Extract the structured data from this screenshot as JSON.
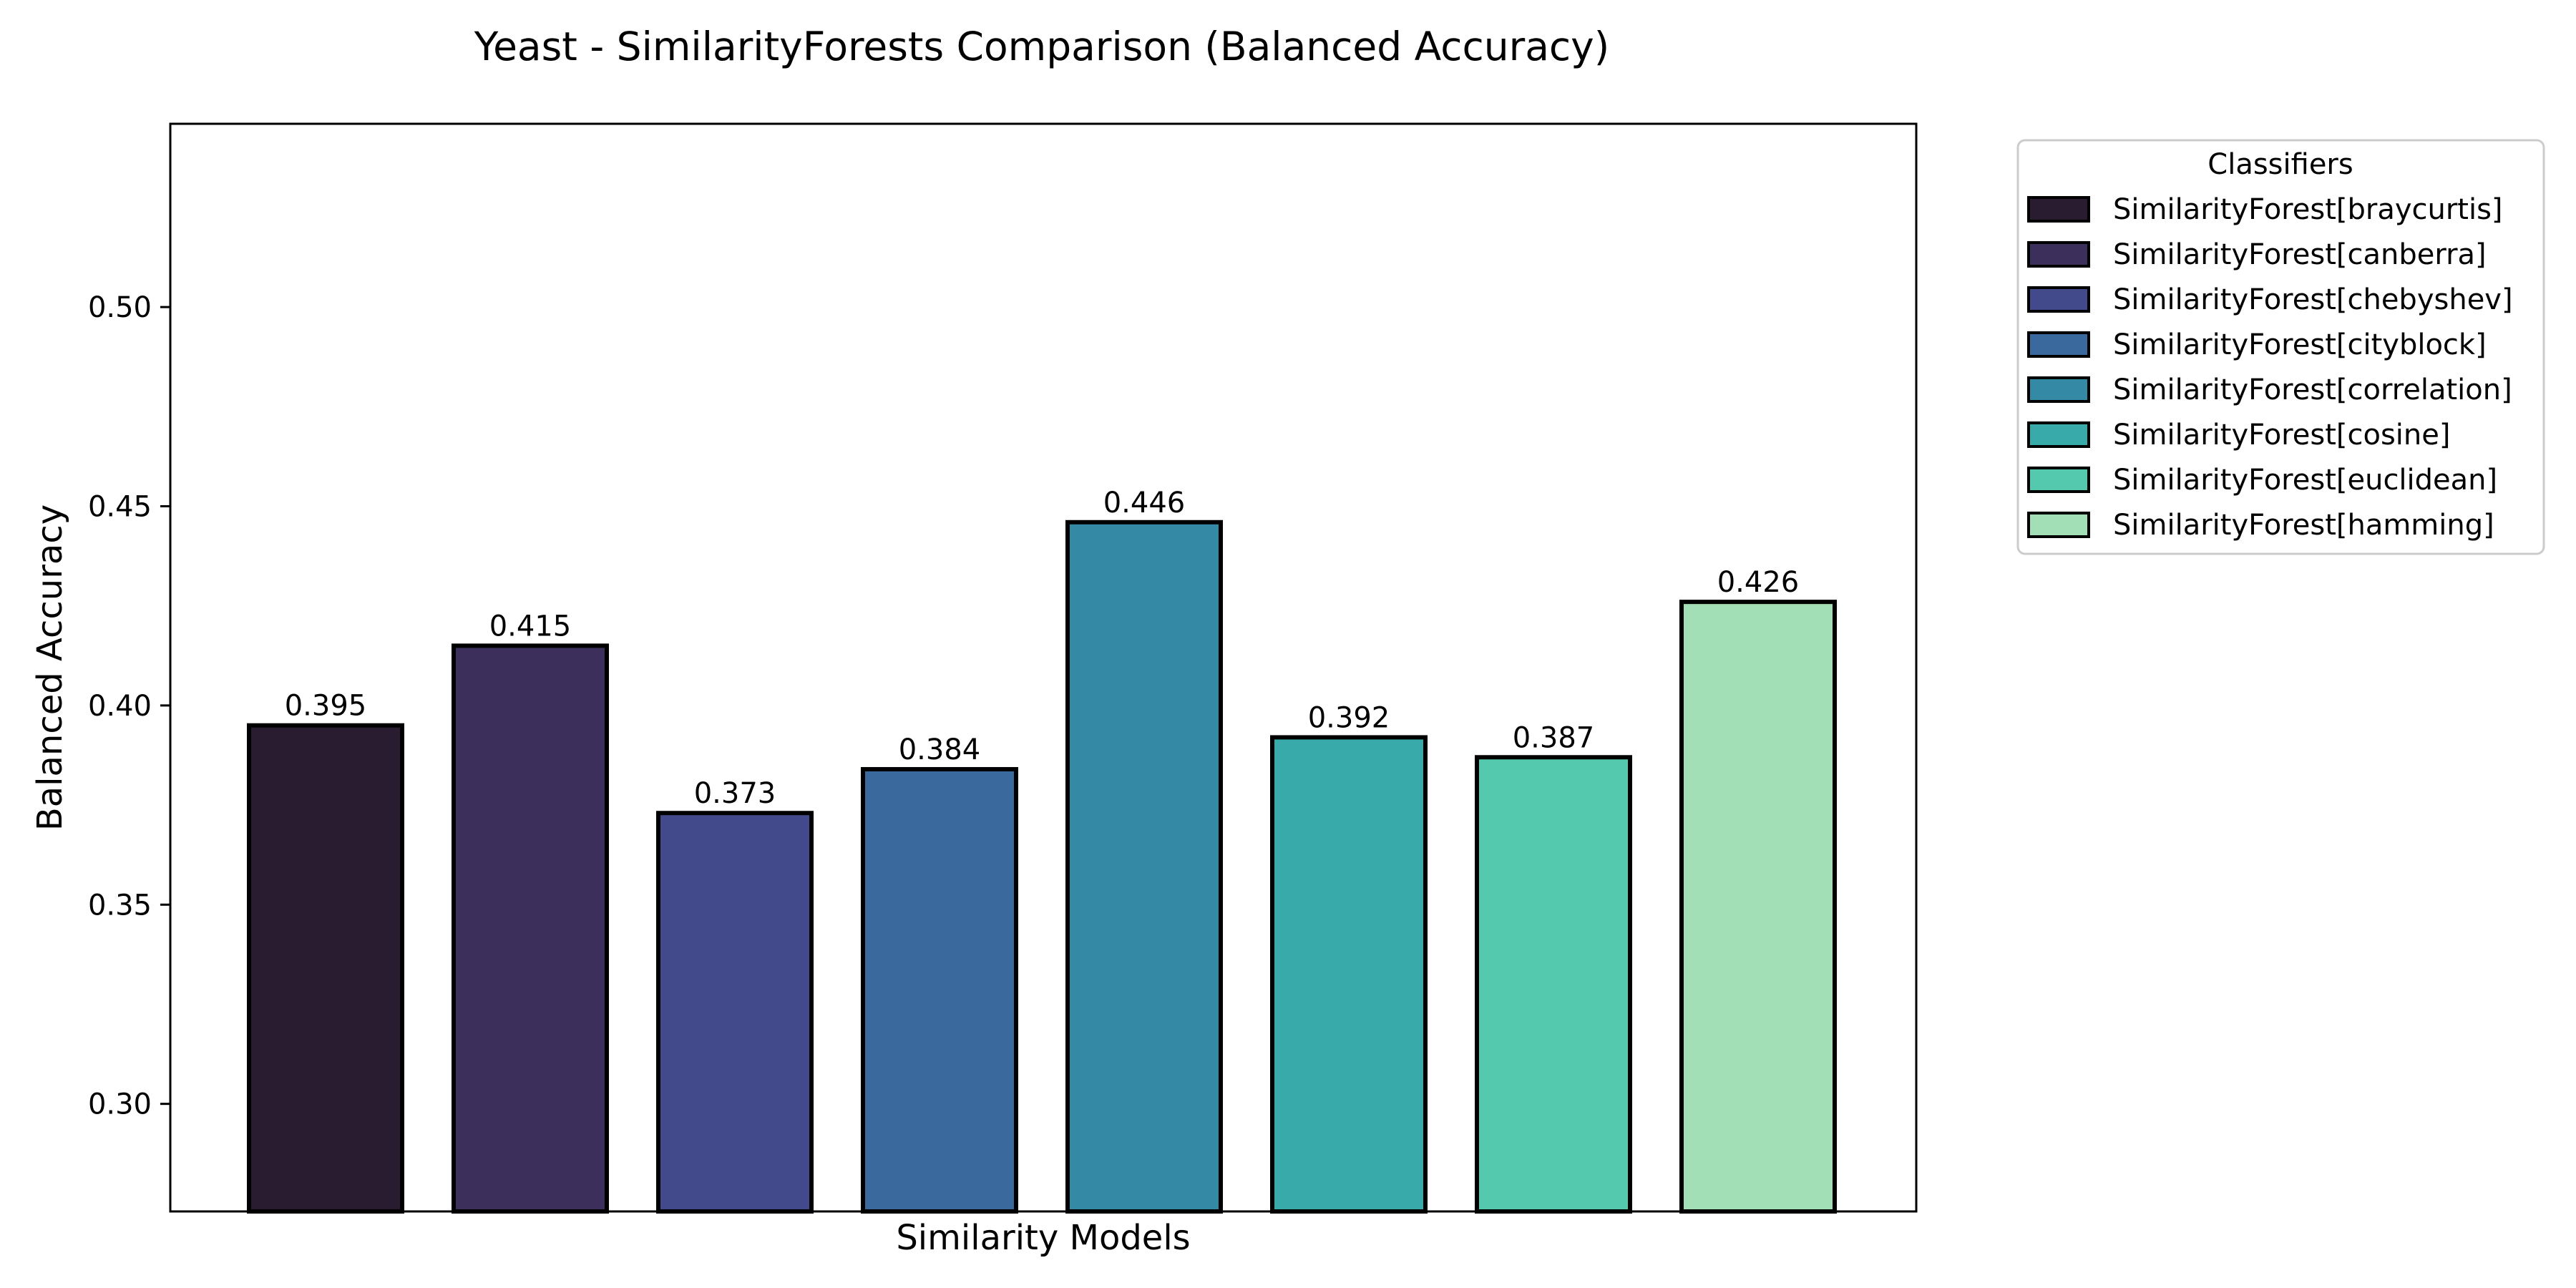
{
  "chart_data": {
    "type": "bar",
    "title": "Yeast - SimilarityForests Comparison (Balanced Accuracy)",
    "xlabel": "Similarity Models",
    "ylabel": "Balanced Accuracy",
    "ylim": [
      0.273,
      0.546
    ],
    "yticks": [
      0.3,
      0.35,
      0.4,
      0.45,
      0.5
    ],
    "ytick_labels": [
      "0.30",
      "0.35",
      "0.40",
      "0.45",
      "0.50"
    ],
    "grid": false,
    "legend": {
      "title": "Classifiers",
      "placement": "outside top-right"
    },
    "categories": [
      "SimilarityForest[braycurtis]",
      "SimilarityForest[canberra]",
      "SimilarityForest[chebyshev]",
      "SimilarityForest[cityblock]",
      "SimilarityForest[correlation]",
      "SimilarityForest[cosine]",
      "SimilarityForest[euclidean]",
      "SimilarityForest[hamming]"
    ],
    "values": [
      0.395,
      0.415,
      0.373,
      0.384,
      0.446,
      0.392,
      0.387,
      0.426
    ],
    "value_labels": [
      "0.395",
      "0.415",
      "0.373",
      "0.384",
      "0.446",
      "0.392",
      "0.387",
      "0.426"
    ],
    "colors": [
      "#2a1c30",
      "#3c2f5c",
      "#424a8c",
      "#3a6a9d",
      "#348aa4",
      "#38aaa9",
      "#55c9ad",
      "#a3dfb6"
    ],
    "edge_color": "#000000"
  }
}
